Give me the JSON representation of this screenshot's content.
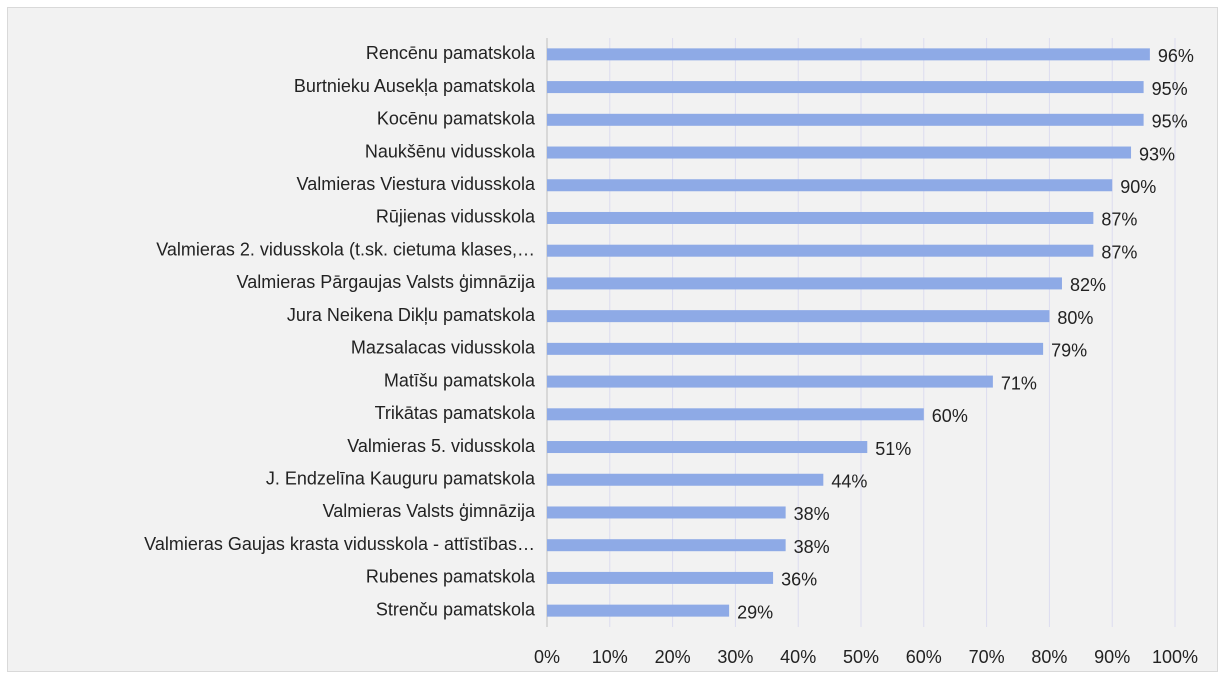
{
  "chart_data": {
    "type": "bar",
    "orientation": "horizontal",
    "categories": [
      "Rencēnu pamatskola",
      "Burtnieku Ausekļa pamatskola",
      "Kocēnu pamatskola",
      "Naukšēnu vidusskola",
      "Valmieras Viestura vidusskola",
      "Rūjienas vidusskola",
      "Valmieras 2. vidusskola (t.sk. cietuma klases,…",
      "Valmieras Pārgaujas Valsts ģimnāzija",
      "Jura Neikena Dikļu pamatskola",
      "Mazsalacas vidusskola",
      "Matīšu pamatskola",
      "Trikātas pamatskola",
      "Valmieras 5. vidusskola",
      "J. Endzelīna Kauguru pamatskola",
      "Valmieras Valsts ģimnāzija",
      "Valmieras Gaujas krasta vidusskola - attīstības…",
      "Rubenes pamatskola",
      "Strenču pamatskola"
    ],
    "values": [
      96,
      95,
      95,
      93,
      90,
      87,
      87,
      82,
      80,
      79,
      71,
      60,
      51,
      44,
      38,
      38,
      36,
      29
    ],
    "value_labels": [
      "96%",
      "95%",
      "95%",
      "93%",
      "90%",
      "87%",
      "87%",
      "82%",
      "80%",
      "79%",
      "71%",
      "60%",
      "51%",
      "44%",
      "38%",
      "38%",
      "36%",
      "29%"
    ],
    "color": "#8eaae6",
    "xlim": [
      0,
      100
    ],
    "xticks": [
      {
        "value": 0,
        "label": "0%"
      },
      {
        "value": 10,
        "label": "10%"
      },
      {
        "value": 20,
        "label": "20%"
      },
      {
        "value": 30,
        "label": "30%"
      },
      {
        "value": 40,
        "label": "40%"
      },
      {
        "value": 50,
        "label": "50%"
      },
      {
        "value": 60,
        "label": "60%"
      },
      {
        "value": 70,
        "label": "70%"
      },
      {
        "value": 80,
        "label": "80%"
      },
      {
        "value": 90,
        "label": "90%"
      },
      {
        "value": 100,
        "label": "100%"
      }
    ],
    "grid": true
  }
}
